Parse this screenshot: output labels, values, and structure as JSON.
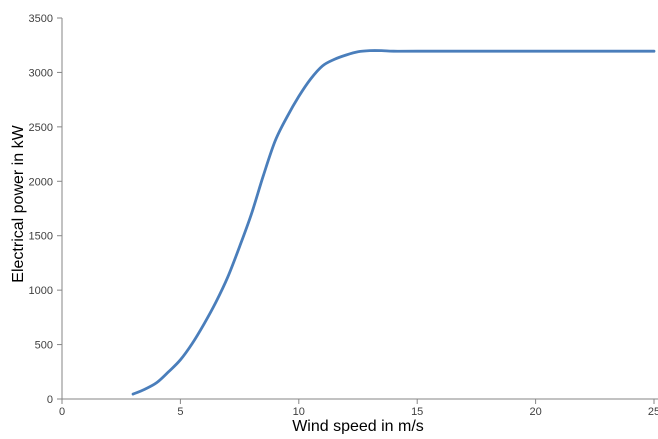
{
  "chart_data": {
    "type": "line",
    "title": "",
    "xlabel": "Wind speed  in m/s",
    "ylabel": "Electrical power  in kW",
    "xlim": [
      0,
      25
    ],
    "ylim": [
      0,
      3500
    ],
    "x_ticks": [
      0,
      5,
      10,
      15,
      20,
      25
    ],
    "y_ticks": [
      0,
      500,
      1000,
      1500,
      2000,
      2500,
      3000,
      3500
    ],
    "grid": false,
    "legend": "none",
    "series": [
      {
        "color": "#4a7ebb",
        "x": [
          3,
          3.5,
          4,
          4.5,
          5,
          5.5,
          6,
          6.5,
          7,
          7.5,
          8,
          8.5,
          9,
          9.5,
          10,
          10.5,
          11,
          11.5,
          12,
          12.5,
          13,
          13.5,
          14,
          15,
          20,
          25
        ],
        "y": [
          45,
          90,
          150,
          250,
          360,
          510,
          690,
          890,
          1120,
          1400,
          1700,
          2050,
          2370,
          2590,
          2780,
          2940,
          3060,
          3120,
          3160,
          3190,
          3200,
          3200,
          3195,
          3195,
          3195,
          3195
        ]
      }
    ]
  }
}
